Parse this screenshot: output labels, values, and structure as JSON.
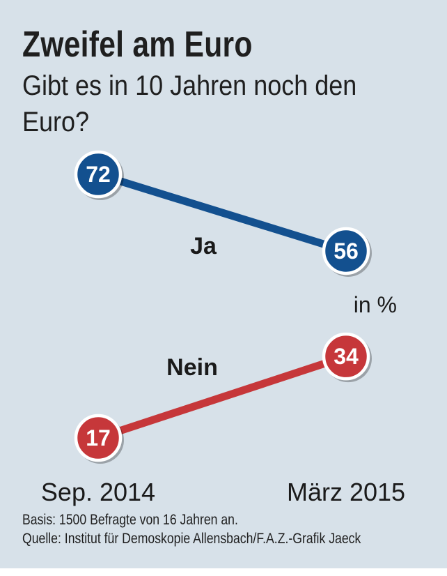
{
  "chart_data": {
    "type": "line",
    "title": "Zweifel am Euro",
    "subtitle": "Gibt es in 10 Jahren noch den Euro?",
    "categories": [
      "Sep. 2014",
      "März 2015"
    ],
    "unit": "in %",
    "series": [
      {
        "name": "Ja",
        "values": [
          72,
          56
        ],
        "color": "#13508f"
      },
      {
        "name": "Nein",
        "values": [
          17,
          34
        ],
        "color": "#c6373a"
      }
    ],
    "ylim": [
      17,
      72
    ],
    "grid": false,
    "legend": "inline"
  },
  "footnotes": {
    "basis": "Basis: 1500 Befragte von 16 Jahren an.",
    "source": "Quelle: Institut für Demoskopie Allensbach/F.A.Z.-Grafik Jaeck"
  },
  "colors": {
    "background": "#d7e1e9",
    "marker_stroke": "#ffffff",
    "text": "#1a1a1a"
  }
}
